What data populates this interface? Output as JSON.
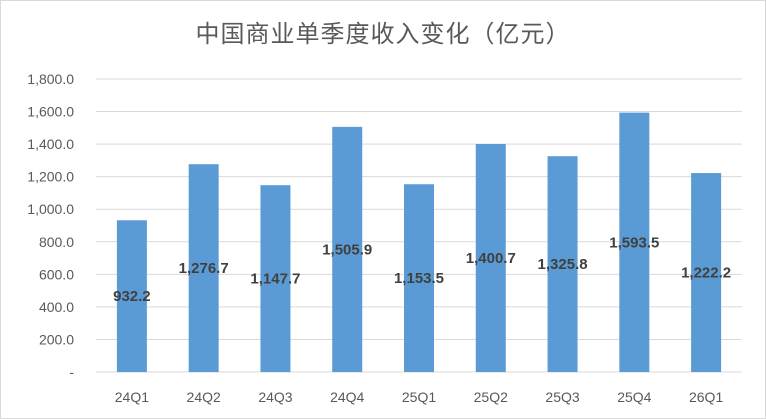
{
  "chart_data": {
    "type": "bar",
    "title": "中国商业单季度收入变化（亿元）",
    "categories": [
      "24Q1",
      "24Q2",
      "24Q3",
      "24Q4",
      "25Q1",
      "25Q2",
      "25Q3",
      "25Q4",
      "26Q1"
    ],
    "values": [
      932.2,
      1276.7,
      1147.7,
      1505.9,
      1153.5,
      1400.7,
      1325.8,
      1593.5,
      1222.2
    ],
    "data_labels": [
      "932.2",
      "1,276.7",
      "1,147.7",
      "1,505.9",
      "1,153.5",
      "1,400.7",
      "1,325.8",
      "1,593.5",
      "1,222.2"
    ],
    "yticks": [
      0,
      200,
      400,
      600,
      800,
      1000,
      1200,
      1400,
      1600,
      1800
    ],
    "ytick_labels": [
      "-",
      "200.0",
      "400.0",
      "600.0",
      "800.0",
      "1,000.0",
      "1,200.0",
      "1,400.0",
      "1,600.0",
      "1,800.0"
    ],
    "ylim": [
      0,
      1800
    ],
    "grid": true,
    "bar_color": "#5b9bd5",
    "grid_color": "#d9d9d9",
    "xlabel": "",
    "ylabel": ""
  }
}
